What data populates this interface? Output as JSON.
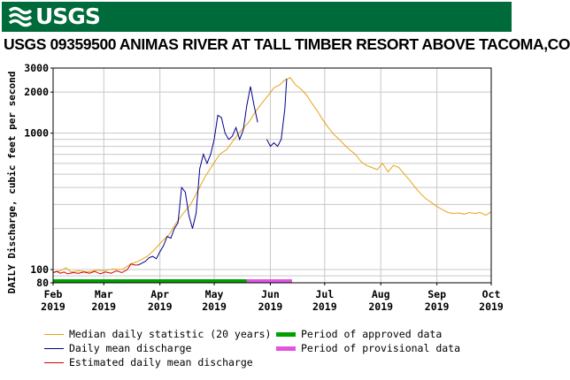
{
  "header": {
    "logo_text": "USGS",
    "title": "USGS 09359500 ANIMAS RIVER AT TALL TIMBER RESORT ABOVE TACOMA,CO"
  },
  "chart_data": {
    "type": "line",
    "title": "USGS 09359500 ANIMAS RIVER AT TALL TIMBER RESORT ABOVE TACOMA,CO",
    "ylabel": "DAILY Discharge, cubic feet per second",
    "xlabel": "",
    "y_scale": "log",
    "ylim": [
      80,
      3000
    ],
    "y_ticks": [
      80,
      100,
      1000,
      2000,
      3000
    ],
    "y_tick_labels": [
      "80",
      "100",
      "1000",
      "2000",
      "3000"
    ],
    "xlim": [
      "2019-02-01",
      "2019-10-01"
    ],
    "x_ticks": [
      {
        "date": "2019-02-01",
        "month": "Feb",
        "year": "2019"
      },
      {
        "date": "2019-03-01",
        "month": "Mar",
        "year": "2019"
      },
      {
        "date": "2019-04-01",
        "month": "Apr",
        "year": "2019"
      },
      {
        "date": "2019-05-01",
        "month": "May",
        "year": "2019"
      },
      {
        "date": "2019-06-01",
        "month": "Jun",
        "year": "2019"
      },
      {
        "date": "2019-07-01",
        "month": "Jul",
        "year": "2019"
      },
      {
        "date": "2019-08-01",
        "month": "Aug",
        "year": "2019"
      },
      {
        "date": "2019-09-01",
        "month": "Sep",
        "year": "2019"
      },
      {
        "date": "2019-10-01",
        "month": "Oct",
        "year": "2019"
      }
    ],
    "grid": true,
    "series": [
      {
        "name": "Median daily statistic (20 years)",
        "color": "#e8a317",
        "points": [
          [
            "2019-02-01",
            95
          ],
          [
            "2019-02-05",
            98
          ],
          [
            "2019-02-08",
            103
          ],
          [
            "2019-02-11",
            96
          ],
          [
            "2019-02-15",
            98
          ],
          [
            "2019-02-20",
            96
          ],
          [
            "2019-02-25",
            99
          ],
          [
            "2019-03-01",
            98
          ],
          [
            "2019-03-06",
            101
          ],
          [
            "2019-03-11",
            100
          ],
          [
            "2019-03-16",
            110
          ],
          [
            "2019-03-20",
            115
          ],
          [
            "2019-03-25",
            125
          ],
          [
            "2019-03-29",
            140
          ],
          [
            "2019-04-02",
            160
          ],
          [
            "2019-04-06",
            180
          ],
          [
            "2019-04-10",
            220
          ],
          [
            "2019-04-14",
            260
          ],
          [
            "2019-04-18",
            300
          ],
          [
            "2019-04-22",
            380
          ],
          [
            "2019-04-26",
            480
          ],
          [
            "2019-04-30",
            580
          ],
          [
            "2019-05-04",
            700
          ],
          [
            "2019-05-08",
            760
          ],
          [
            "2019-05-12",
            900
          ],
          [
            "2019-05-16",
            1050
          ],
          [
            "2019-05-20",
            1200
          ],
          [
            "2019-05-24",
            1450
          ],
          [
            "2019-05-28",
            1700
          ],
          [
            "2019-05-31",
            1900
          ],
          [
            "2019-06-03",
            2150
          ],
          [
            "2019-06-06",
            2250
          ],
          [
            "2019-06-09",
            2450
          ],
          [
            "2019-06-12",
            2550
          ],
          [
            "2019-06-15",
            2250
          ],
          [
            "2019-06-18",
            2100
          ],
          [
            "2019-06-21",
            1900
          ],
          [
            "2019-06-24",
            1650
          ],
          [
            "2019-06-27",
            1450
          ],
          [
            "2019-06-30",
            1250
          ],
          [
            "2019-07-03",
            1100
          ],
          [
            "2019-07-06",
            980
          ],
          [
            "2019-07-09",
            900
          ],
          [
            "2019-07-12",
            820
          ],
          [
            "2019-07-15",
            750
          ],
          [
            "2019-07-18",
            700
          ],
          [
            "2019-07-21",
            620
          ],
          [
            "2019-07-24",
            580
          ],
          [
            "2019-07-27",
            560
          ],
          [
            "2019-07-30",
            540
          ],
          [
            "2019-08-02",
            600
          ],
          [
            "2019-08-05",
            520
          ],
          [
            "2019-08-08",
            580
          ],
          [
            "2019-08-11",
            560
          ],
          [
            "2019-08-14",
            500
          ],
          [
            "2019-08-17",
            450
          ],
          [
            "2019-08-20",
            400
          ],
          [
            "2019-08-23",
            360
          ],
          [
            "2019-08-26",
            330
          ],
          [
            "2019-08-29",
            310
          ],
          [
            "2019-09-01",
            290
          ],
          [
            "2019-09-04",
            275
          ],
          [
            "2019-09-07",
            262
          ],
          [
            "2019-09-10",
            258
          ],
          [
            "2019-09-13",
            260
          ],
          [
            "2019-09-16",
            255
          ],
          [
            "2019-09-19",
            262
          ],
          [
            "2019-09-22",
            258
          ],
          [
            "2019-09-25",
            262
          ],
          [
            "2019-09-28",
            250
          ],
          [
            "2019-10-01",
            265
          ]
        ]
      },
      {
        "name": "Daily mean discharge",
        "color": "#00008b",
        "points": [
          [
            "2019-03-20",
            108
          ],
          [
            "2019-03-24",
            115
          ],
          [
            "2019-03-26",
            122
          ],
          [
            "2019-03-28",
            125
          ],
          [
            "2019-03-30",
            120
          ],
          [
            "2019-04-01",
            135
          ],
          [
            "2019-04-03",
            150
          ],
          [
            "2019-04-05",
            175
          ],
          [
            "2019-04-07",
            170
          ],
          [
            "2019-04-09",
            200
          ],
          [
            "2019-04-11",
            220
          ],
          [
            "2019-04-13",
            400
          ],
          [
            "2019-04-15",
            370
          ],
          [
            "2019-04-17",
            250
          ],
          [
            "2019-04-19",
            200
          ],
          [
            "2019-04-21",
            260
          ],
          [
            "2019-04-23",
            550
          ],
          [
            "2019-04-25",
            700
          ],
          [
            "2019-04-27",
            600
          ],
          [
            "2019-04-29",
            700
          ],
          [
            "2019-05-01",
            900
          ],
          [
            "2019-05-03",
            1350
          ],
          [
            "2019-05-05",
            1300
          ],
          [
            "2019-05-07",
            1000
          ],
          [
            "2019-05-09",
            900
          ],
          [
            "2019-05-11",
            950
          ],
          [
            "2019-05-13",
            1100
          ],
          [
            "2019-05-15",
            900
          ],
          [
            "2019-05-17",
            1050
          ],
          [
            "2019-05-19",
            1600
          ],
          [
            "2019-05-21",
            2200
          ],
          [
            "2019-05-23",
            1600
          ],
          [
            "2019-05-25",
            1200
          ],
          null,
          [
            "2019-05-30",
            900
          ],
          [
            "2019-06-01",
            800
          ],
          [
            "2019-06-03",
            850
          ],
          [
            "2019-06-05",
            800
          ],
          [
            "2019-06-07",
            900
          ],
          [
            "2019-06-09",
            1500
          ],
          [
            "2019-06-10",
            2500
          ]
        ]
      },
      {
        "name": "Estimated daily mean discharge",
        "color": "#cc0000",
        "points": [
          [
            "2019-02-01",
            95
          ],
          [
            "2019-02-03",
            97
          ],
          [
            "2019-02-05",
            94
          ],
          [
            "2019-02-07",
            96
          ],
          [
            "2019-02-09",
            93
          ],
          [
            "2019-02-12",
            95
          ],
          [
            "2019-02-15",
            94
          ],
          [
            "2019-02-18",
            96
          ],
          [
            "2019-02-21",
            94
          ],
          [
            "2019-02-24",
            97
          ],
          [
            "2019-02-27",
            93
          ],
          [
            "2019-03-02",
            96
          ],
          [
            "2019-03-05",
            94
          ],
          [
            "2019-03-08",
            98
          ],
          [
            "2019-03-11",
            95
          ],
          [
            "2019-03-14",
            100
          ],
          [
            "2019-03-16",
            110
          ],
          [
            "2019-03-18",
            108
          ],
          [
            "2019-03-20",
            108
          ]
        ]
      }
    ],
    "periods": [
      {
        "name": "Period of approved data",
        "color": "#00a000",
        "start": "2019-02-01",
        "end": "2019-05-19"
      },
      {
        "name": "Period of provisional data",
        "color": "#e055e0",
        "start": "2019-05-19",
        "end": "2019-06-13"
      }
    ]
  },
  "legend": {
    "median": "Median daily statistic (20 years)",
    "mean": "Daily mean discharge",
    "estimated": "Estimated daily mean discharge",
    "approved": "Period of approved data",
    "provisional": "Period of provisional data",
    "colors": {
      "median": "#e8a317",
      "mean": "#00008b",
      "estimated": "#cc0000",
      "approved": "#00a000",
      "provisional": "#e055e0"
    }
  },
  "banner_color": "#006b3a"
}
